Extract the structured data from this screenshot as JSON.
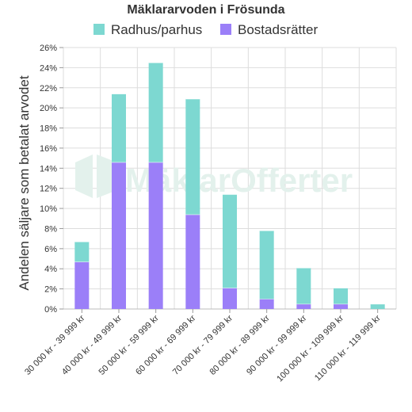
{
  "chart_data": {
    "type": "bar",
    "stacked": true,
    "title": "Mäklararvoden i Frösunda",
    "ylabel": "Andelen säljare som betalat arvodet",
    "xlabel": "",
    "ylim": [
      0,
      26
    ],
    "ytick_labels": [
      "0%",
      "2%",
      "4%",
      "6%",
      "8%",
      "10%",
      "12%",
      "14%",
      "16%",
      "18%",
      "20%",
      "22%",
      "24%",
      "26%"
    ],
    "categories": [
      "30 000 kr - 39 999 kr",
      "40 000 kr - 49 999 kr",
      "50 000 kr - 59 999 kr",
      "60 000 kr - 69 999 kr",
      "70 000 kr - 79 999 kr",
      "80 000 kr - 89 999 kr",
      "90 000 kr - 99 999 kr",
      "100 000 kr - 109 999 kr",
      "110 000 kr - 119 999 kr"
    ],
    "series": [
      {
        "name": "Bostadsrätter",
        "color": "#9b7ff8",
        "values": [
          4.7,
          14.6,
          14.6,
          9.4,
          2.1,
          1.0,
          0.5,
          0.5,
          0.0
        ]
      },
      {
        "name": "Radhus/parhus",
        "color": "#7dd8d1",
        "values": [
          2.0,
          6.8,
          9.9,
          11.5,
          9.3,
          6.8,
          3.6,
          1.6,
          0.5
        ]
      }
    ],
    "legend_order": [
      "Radhus/parhus",
      "Bostadsrätter"
    ],
    "legend_position": "top",
    "grid": true
  },
  "watermark": {
    "text": "MäklarOfferter",
    "color": "#e3f1ec"
  }
}
